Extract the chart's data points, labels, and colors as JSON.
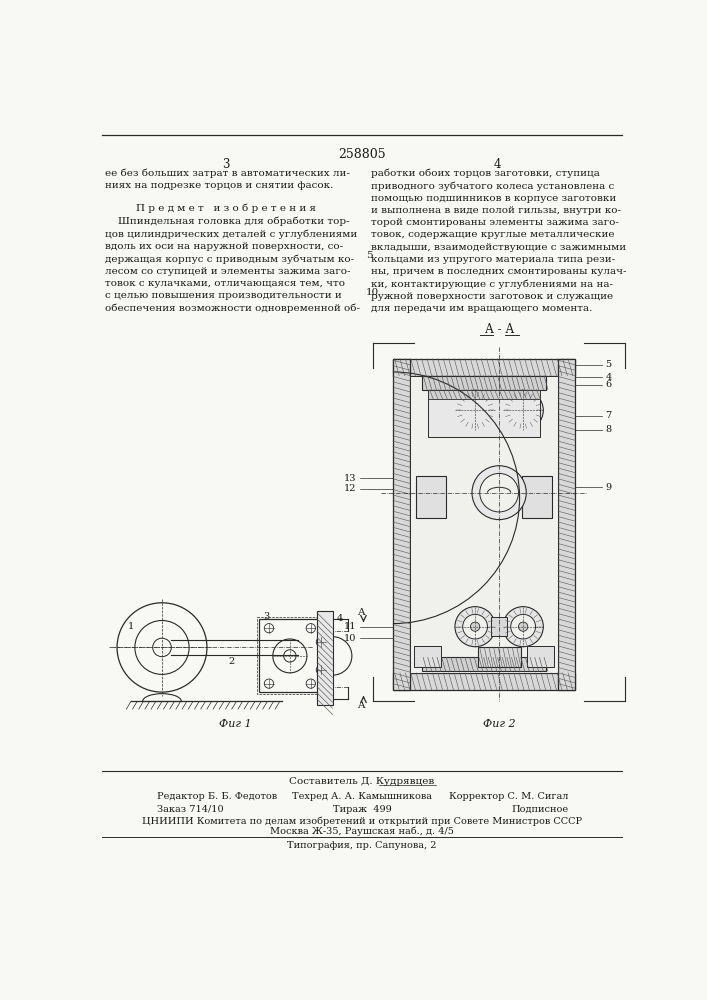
{
  "patent_number": "258805",
  "page_left": "3",
  "page_right": "4",
  "top_text_left": "ее без больших затрат в автоматических ли-\nниях на подрезке торцов и снятии фасок.",
  "section_title": "П р е д м е т   и з о б р е т е н и я",
  "main_text_left": "    Шпиндельная головка для обработки тор-\nцов цилиндрических деталей с углублениями\nвдоль их оси на наружной поверхности, со-\nдержащая корпус с приводным зубчатым ко-\nлесом со ступицей и элементы зажима заго-\nтовок с кулачками, отличающаяся тем, что\nс целью повышения производительности и\nобеспечения возможности одновременной об-",
  "main_text_right_italic_word": "отличающаяся",
  "main_text_right": "работки обоих торцов заготовки, ступица\nприводного зубчатого колеса установлена с\nпомощью подшинников в корпусе заготовки\nи выполнена в виде полой гильзы, внутри ко-\nторой смонтированы элементы зажима заго-\nтовок, содержащие круглые металлические\nвкладыши, взаимодействующие с зажимными\nкольцами из упругого материала типа рези-\nны, причем в последних смонтированы кулач-\nки, контактирующие с углублениями на на-\nружной поверхности заготовок и служащие\nдля передачи им вращающего момента.",
  "line_number5": "5",
  "line_number10": "10",
  "fig1_label": "Фиг 1",
  "fig2_label": "Фиг 2",
  "fig2_title": "А - А",
  "composer_line": "Составитель Д. Кудрявцев",
  "editor_text": "Редактор Б. Б. Федотов",
  "techred_text": "Техред А. А. Камышникова",
  "corrector_text": "Корректор С. М. Сигал",
  "order_text": "Заказ 714/10",
  "tirazh_text": "Тираж  499",
  "podpisnoe_text": "Подписное",
  "org_line": "ЦНИИПИ Комитета по делам изобретений и открытий при Совете Министров СССР",
  "address_line": "Москва Ж-35, Раушская наб., д. 4/5",
  "print_line": "Типография, пр. Сапунова, 2",
  "bg_color": "#f8f8f5",
  "text_color": "#1a1a1a",
  "line_color": "#2a2a2a",
  "hatch_color": "#555555"
}
